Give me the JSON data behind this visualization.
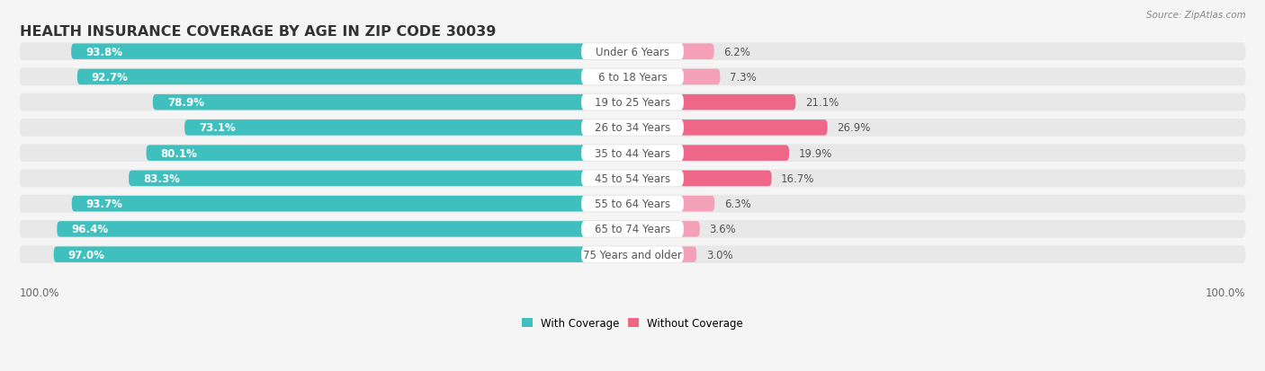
{
  "title": "HEALTH INSURANCE COVERAGE BY AGE IN ZIP CODE 30039",
  "source": "Source: ZipAtlas.com",
  "categories": [
    "Under 6 Years",
    "6 to 18 Years",
    "19 to 25 Years",
    "26 to 34 Years",
    "35 to 44 Years",
    "45 to 54 Years",
    "55 to 64 Years",
    "65 to 74 Years",
    "75 Years and older"
  ],
  "with_coverage": [
    93.8,
    92.7,
    78.9,
    73.1,
    80.1,
    83.3,
    93.7,
    96.4,
    97.0
  ],
  "without_coverage": [
    6.2,
    7.3,
    21.1,
    26.9,
    19.9,
    16.7,
    6.3,
    3.6,
    3.0
  ],
  "with_color": "#40bfbf",
  "without_color_strong": "#ee6688",
  "without_color_light": "#f4a0b8",
  "row_bg_color": "#e8e8e8",
  "bg_color": "#f5f5f5",
  "title_fontsize": 11.5,
  "label_fontsize": 8.5,
  "cat_fontsize": 8.5,
  "source_fontsize": 7.5,
  "legend_with": "With Coverage",
  "legend_without": "Without Coverage",
  "axis_label_left": "100.0%",
  "axis_label_right": "100.0%",
  "without_strong_threshold": 15
}
